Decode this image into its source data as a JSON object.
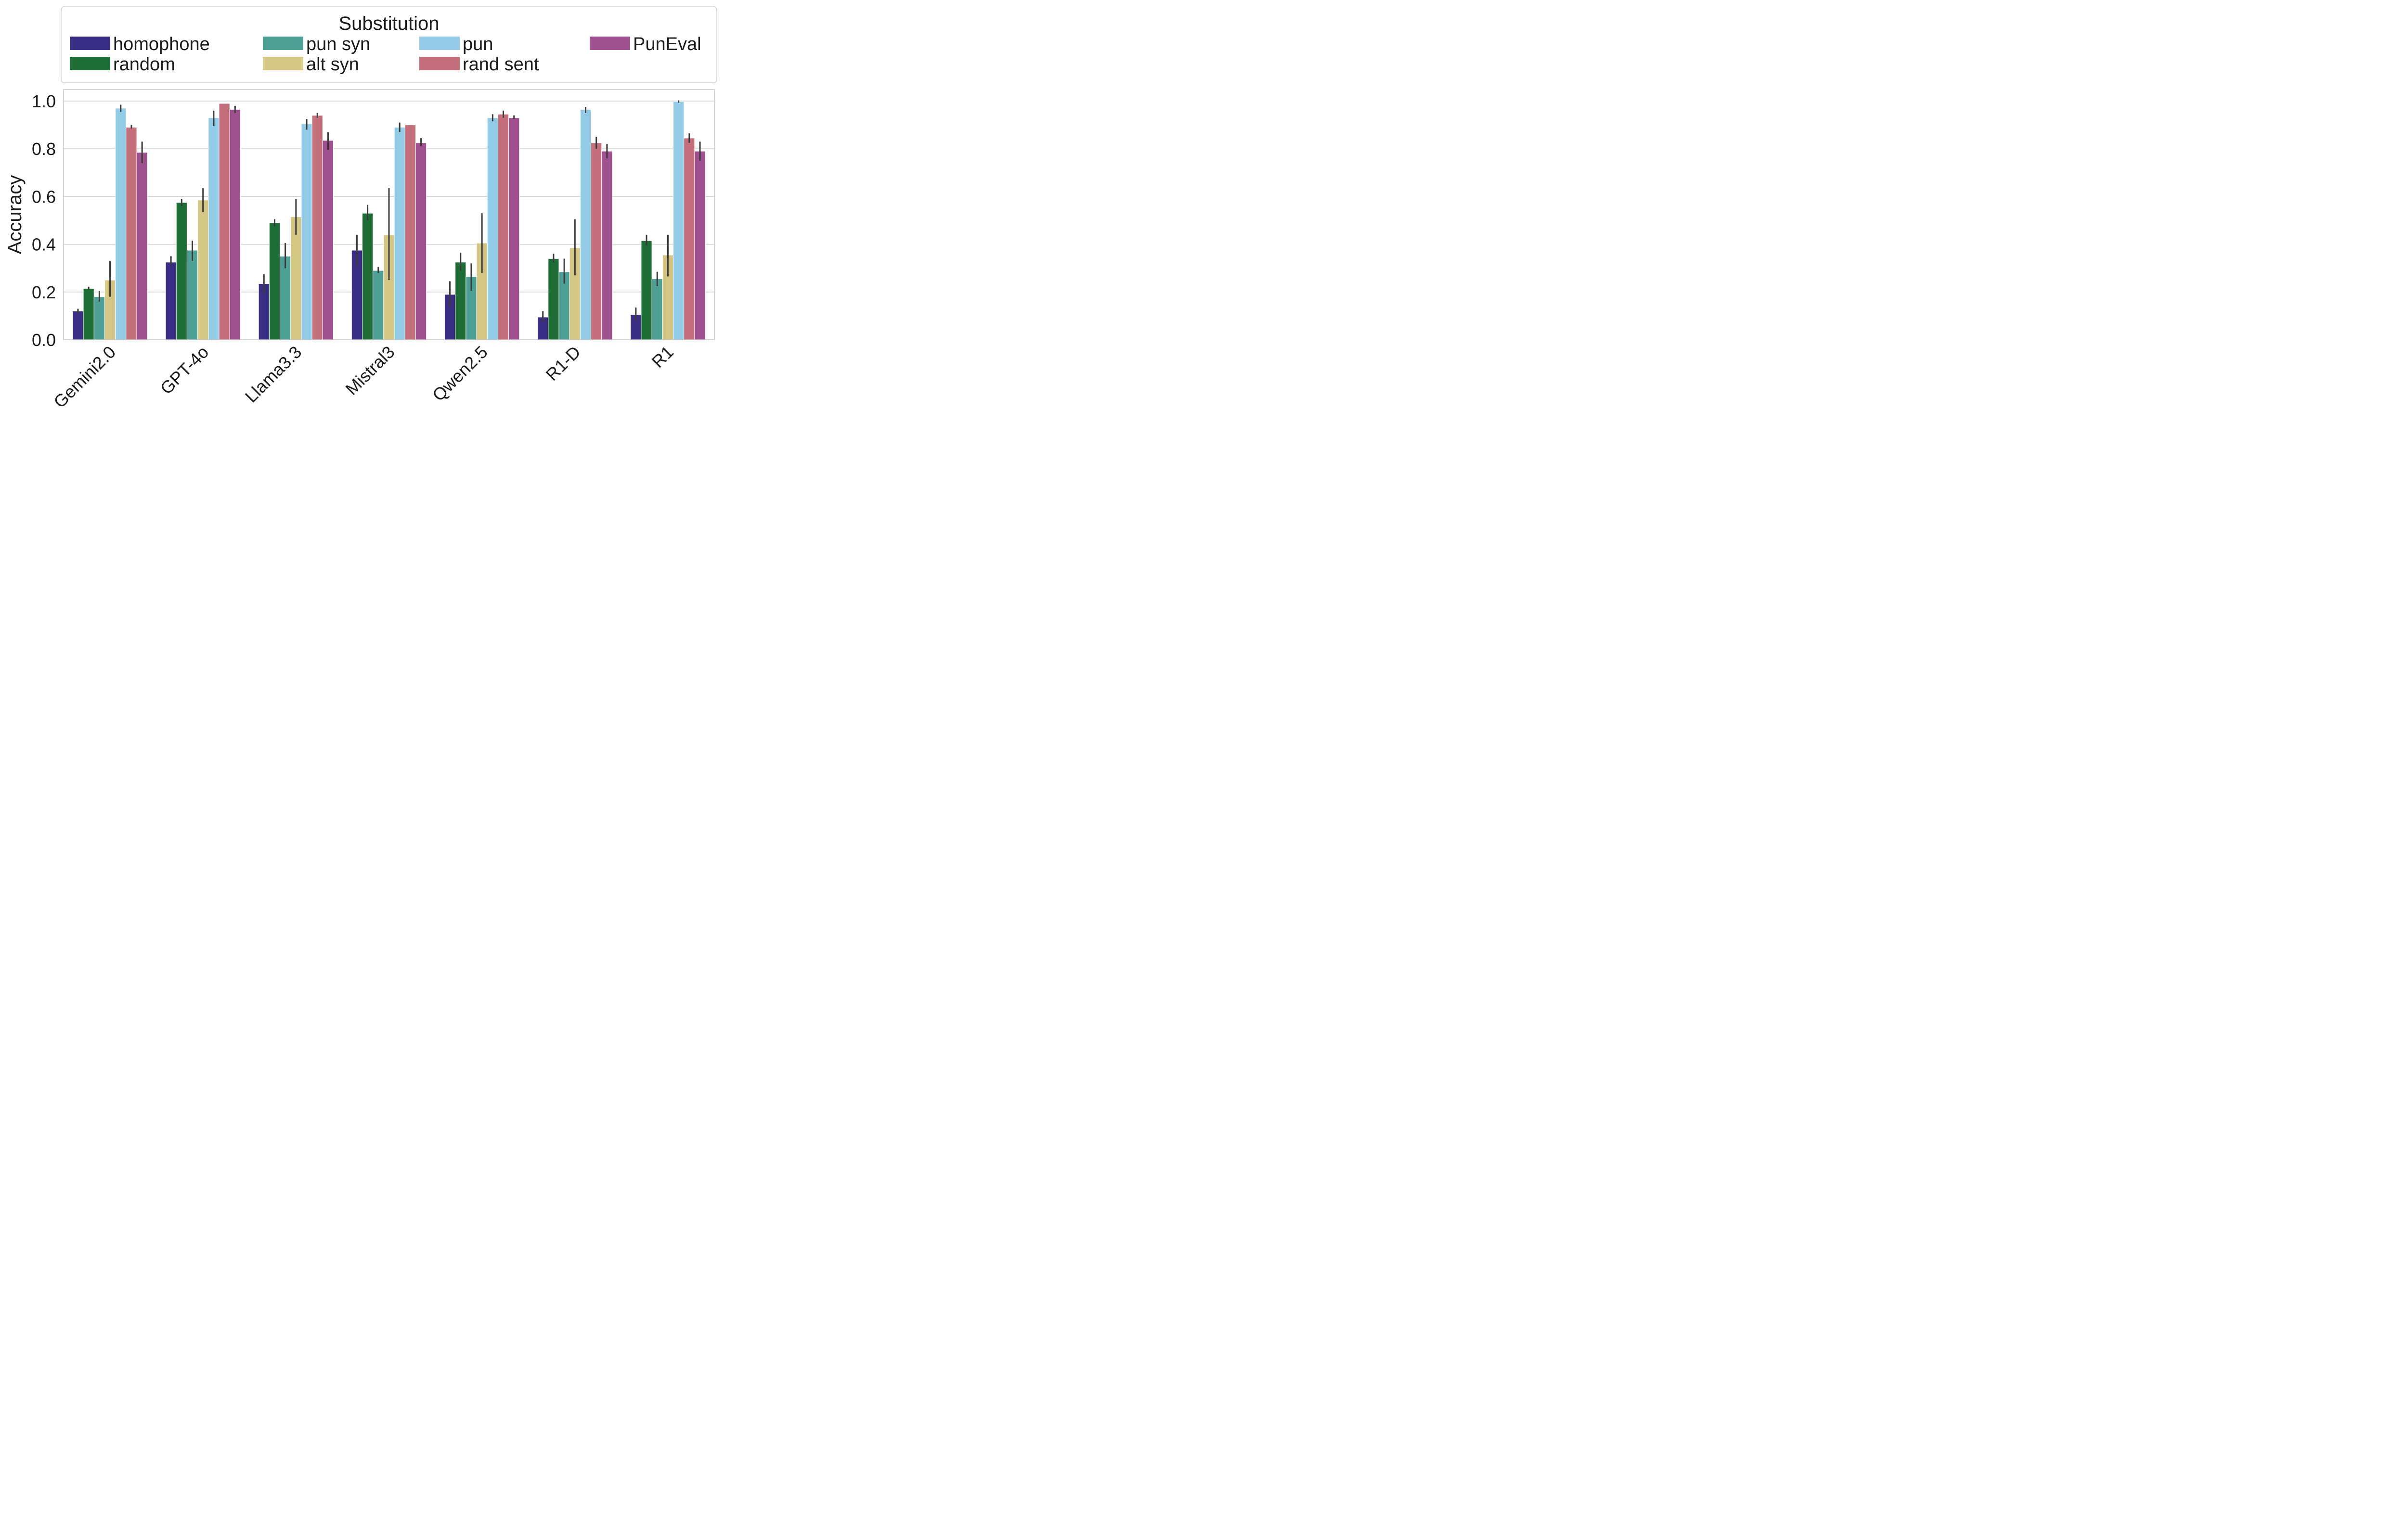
{
  "chart_data": {
    "type": "bar",
    "title": "",
    "xlabel": "",
    "ylabel": "Accuracy",
    "ylim": [
      0,
      1.05
    ],
    "yticks": [
      0.0,
      0.2,
      0.4,
      0.6,
      0.8,
      1.0
    ],
    "ytick_labels": [
      "0.0",
      "0.2",
      "0.4",
      "0.6",
      "0.8",
      "1.0"
    ],
    "grid": true,
    "legend": {
      "title": "Substitution",
      "placement": "top"
    },
    "categories": [
      "Gemini2.0",
      "GPT-4o",
      "Llama3.3",
      "Mistral3",
      "Qwen2.5",
      "R1-D",
      "R1"
    ],
    "series": [
      {
        "name": "homophone",
        "color": "#3a2e84",
        "values": [
          0.12,
          0.325,
          0.235,
          0.375,
          0.19,
          0.095,
          0.105
        ],
        "err_low": [
          0.11,
          0.31,
          0.195,
          0.31,
          0.14,
          0.075,
          0.08
        ],
        "err_high": [
          0.13,
          0.35,
          0.275,
          0.44,
          0.245,
          0.12,
          0.135
        ]
      },
      {
        "name": "random",
        "color": "#1e6d36",
        "values": [
          0.215,
          0.575,
          0.49,
          0.53,
          0.325,
          0.34,
          0.415
        ],
        "err_low": [
          0.21,
          0.56,
          0.475,
          0.5,
          0.29,
          0.325,
          0.395
        ],
        "err_high": [
          0.222,
          0.59,
          0.505,
          0.565,
          0.365,
          0.36,
          0.44
        ]
      },
      {
        "name": "pun syn",
        "color": "#4da093",
        "values": [
          0.18,
          0.375,
          0.35,
          0.29,
          0.265,
          0.285,
          0.255
        ],
        "err_low": [
          0.16,
          0.33,
          0.3,
          0.28,
          0.205,
          0.235,
          0.225
        ],
        "err_high": [
          0.205,
          0.415,
          0.405,
          0.305,
          0.32,
          0.34,
          0.285
        ]
      },
      {
        "name": "alt syn",
        "color": "#d4c685",
        "values": [
          0.25,
          0.585,
          0.515,
          0.44,
          0.405,
          0.385,
          0.355
        ],
        "err_low": [
          0.18,
          0.535,
          0.44,
          0.25,
          0.28,
          0.27,
          0.265
        ],
        "err_high": [
          0.33,
          0.635,
          0.59,
          0.635,
          0.53,
          0.505,
          0.44
        ]
      },
      {
        "name": "pun",
        "color": "#94cbe6",
        "values": [
          0.97,
          0.93,
          0.905,
          0.89,
          0.93,
          0.965,
          0.998
        ],
        "err_low": [
          0.955,
          0.895,
          0.88,
          0.87,
          0.915,
          0.95,
          0.993
        ],
        "err_high": [
          0.985,
          0.96,
          0.925,
          0.91,
          0.945,
          0.975,
          1.003
        ]
      },
      {
        "name": "rand sent",
        "color": "#c3707c",
        "values": [
          0.89,
          0.99,
          0.94,
          0.9,
          0.945,
          0.825,
          0.845
        ],
        "err_low": [
          0.885,
          0.99,
          0.93,
          0.9,
          0.93,
          0.8,
          0.825
        ],
        "err_high": [
          0.9,
          0.99,
          0.95,
          0.9,
          0.96,
          0.85,
          0.865
        ]
      },
      {
        "name": "PunEval",
        "color": "#9f508f",
        "values": [
          0.785,
          0.965,
          0.835,
          0.825,
          0.93,
          0.79,
          0.79
        ],
        "err_low": [
          0.74,
          0.95,
          0.795,
          0.81,
          0.925,
          0.76,
          0.75
        ],
        "err_high": [
          0.83,
          0.98,
          0.87,
          0.845,
          0.94,
          0.82,
          0.83
        ]
      }
    ]
  }
}
